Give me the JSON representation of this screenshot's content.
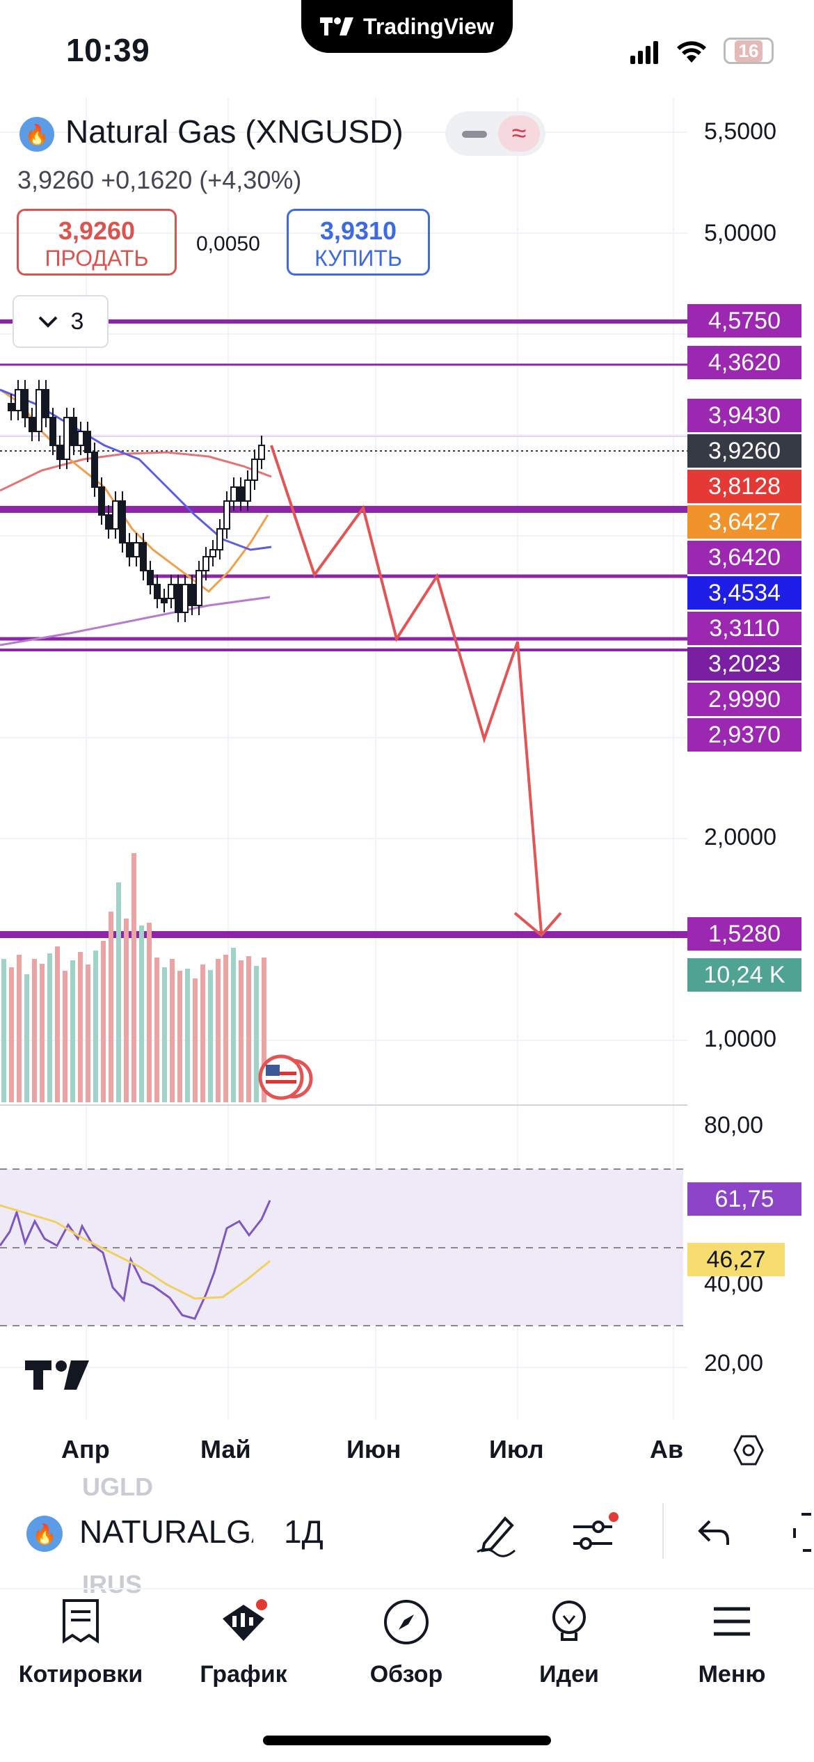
{
  "status": {
    "time": "10:39",
    "battery": "16",
    "app_pill": "TradingView"
  },
  "header": {
    "symbol": "Natural Gas (XNGUSD)",
    "last": "3,9260",
    "change": "+0,1620 (+4,30%)",
    "sell_price": "3,9260",
    "sell_label": "ПРОДАТЬ",
    "spread": "0,0050",
    "buy_price": "3,9310",
    "buy_label": "КУПИТЬ",
    "indicators_count": "3"
  },
  "price_axis": {
    "ticks": [
      "5,5000",
      "5,0000",
      "2,0000",
      "1,0000"
    ],
    "rsi_ticks": [
      "80,00",
      "40,00",
      "20,00"
    ]
  },
  "price_labels": [
    {
      "text": "4,5750",
      "color": "#9c27b0"
    },
    {
      "text": "4,3620",
      "color": "#9c27b0"
    },
    {
      "text": "3,9430",
      "color": "#9c27b0"
    },
    {
      "text": "3,9260",
      "color": "#363a45"
    },
    {
      "text": "3,8128",
      "color": "#e53935"
    },
    {
      "text": "3,6427",
      "color": "#f0932b"
    },
    {
      "text": "3,6420",
      "color": "#9c27b0"
    },
    {
      "text": "3,4534",
      "color": "#1e1ee6"
    },
    {
      "text": "3,3110",
      "color": "#9c27b0"
    },
    {
      "text": "3,2023",
      "color": "#7b1fa2"
    },
    {
      "text": "2,9990",
      "color": "#9c27b0"
    },
    {
      "text": "2,9370",
      "color": "#9c27b0"
    },
    {
      "text": "1,5280",
      "color": "#9c27b0"
    },
    {
      "text": "10,24 K",
      "color": "#4fa393"
    }
  ],
  "rsi_labels": [
    {
      "text": "61,75",
      "color": "#8e44c8",
      "fg": "#ffffff"
    },
    {
      "text": "46,27",
      "color": "#f7dc6f",
      "fg": "#131722"
    }
  ],
  "time_axis": [
    "Апр",
    "Май",
    "Июн",
    "Июл",
    "Ав"
  ],
  "toolbar": {
    "symbol": "NATURALGAS",
    "interval": "1Д",
    "ghost_top": "UGLD",
    "ghost_bottom": "IRUS"
  },
  "nav": [
    {
      "label": "Котировки",
      "icon": "quotes-icon"
    },
    {
      "label": "График",
      "icon": "chart-icon"
    },
    {
      "label": "Обзор",
      "icon": "compass-icon"
    },
    {
      "label": "Идеи",
      "icon": "lightbulb-icon"
    },
    {
      "label": "Меню",
      "icon": "menu-icon"
    }
  ]
}
